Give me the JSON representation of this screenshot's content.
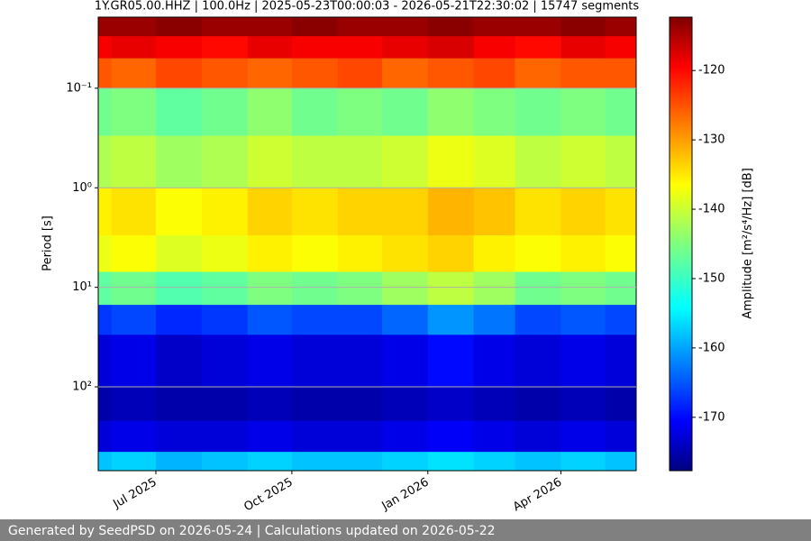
{
  "chart_data": {
    "type": "spectrogram",
    "title": "1Y.GR05.00.HHZ | 100.0Hz | 2025-05-23T00:00:03 - 2026-05-21T22:30:02 | 15747 segments",
    "ylabel": "Period [s]",
    "colorbar_label": "Amplitude [m²/s⁴/Hz] [dB]",
    "colormap": "jet",
    "x": [
      "2025-05",
      "2025-06",
      "2025-07",
      "2025-08",
      "2025-09",
      "2025-10",
      "2025-11",
      "2025-12",
      "2026-01",
      "2026-02",
      "2026-03",
      "2026-04",
      "2026-05"
    ],
    "xlim": [
      "2025-05-23T00:00:03",
      "2026-05-21T22:30:02"
    ],
    "xticks": [
      {
        "value": "2025-07",
        "label": "Jul 2025"
      },
      {
        "value": "2025-10",
        "label": "Oct 2025"
      },
      {
        "value": "2026-01",
        "label": "Jan 2026"
      },
      {
        "value": "2026-04",
        "label": "Apr 2026"
      }
    ],
    "y_bins": [
      0.0193,
      0.03,
      0.05,
      0.1,
      0.3,
      1,
      3,
      7,
      15,
      30,
      100,
      220,
      450,
      695
    ],
    "ylim": [
      0.0193,
      695
    ],
    "y_log": true,
    "y_inverted": true,
    "yticks": [
      {
        "value": 0.1,
        "label": "10⁻¹"
      },
      {
        "value": 1,
        "label": "10⁰"
      },
      {
        "value": 10,
        "label": "10¹"
      },
      {
        "value": 100,
        "label": "10²"
      }
    ],
    "grid": true,
    "clim": [
      -177.7,
      -112.3
    ],
    "cticks": [
      -120,
      -130,
      -140,
      -150,
      -160,
      -170
    ],
    "values": [
      [
        -114,
        -114,
        -113,
        -114,
        -114,
        -113,
        -114,
        -114,
        -113,
        -114,
        -114,
        -113,
        -114
      ],
      [
        -120,
        -119,
        -120,
        -121,
        -119,
        -120,
        -120,
        -119,
        -118,
        -120,
        -121,
        -119,
        -120
      ],
      [
        -126,
        -127,
        -125,
        -126,
        -127,
        -126,
        -125,
        -127,
        -126,
        -125,
        -127,
        -126,
        -126
      ],
      [
        -146,
        -145,
        -147,
        -146,
        -144,
        -146,
        -145,
        -146,
        -144,
        -145,
        -146,
        -145,
        -146
      ],
      [
        -142,
        -141,
        -143,
        -142,
        -140,
        -141,
        -141,
        -140,
        -138,
        -139,
        -141,
        -140,
        -141
      ],
      [
        -136,
        -135,
        -137,
        -136,
        -134,
        -135,
        -134,
        -134,
        -132,
        -133,
        -135,
        -134,
        -135
      ],
      [
        -138,
        -137,
        -139,
        -138,
        -136,
        -137,
        -136,
        -135,
        -134,
        -136,
        -137,
        -136,
        -137
      ],
      [
        -147,
        -146,
        -148,
        -147,
        -145,
        -146,
        -145,
        -143,
        -141,
        -143,
        -146,
        -145,
        -146
      ],
      [
        -166,
        -165,
        -167,
        -166,
        -164,
        -165,
        -165,
        -163,
        -160,
        -162,
        -165,
        -164,
        -165
      ],
      [
        -172,
        -171,
        -173,
        -172,
        -171,
        -172,
        -172,
        -171,
        -169,
        -171,
        -172,
        -171,
        -172
      ],
      [
        -175,
        -174,
        -175,
        -175,
        -174,
        -175,
        -175,
        -174,
        -173,
        -174,
        -175,
        -174,
        -175
      ],
      [
        -172,
        -171,
        -172,
        -172,
        -171,
        -172,
        -172,
        -171,
        -170,
        -171,
        -172,
        -171,
        -172
      ],
      [
        -157,
        -156,
        -158,
        -157,
        -156,
        -157,
        -157,
        -156,
        -155,
        -156,
        -157,
        -156,
        -157
      ]
    ]
  },
  "footer": {
    "text": "Generated by SeedPSD on 2026-05-24 | Calculations updated on 2026-05-22"
  }
}
